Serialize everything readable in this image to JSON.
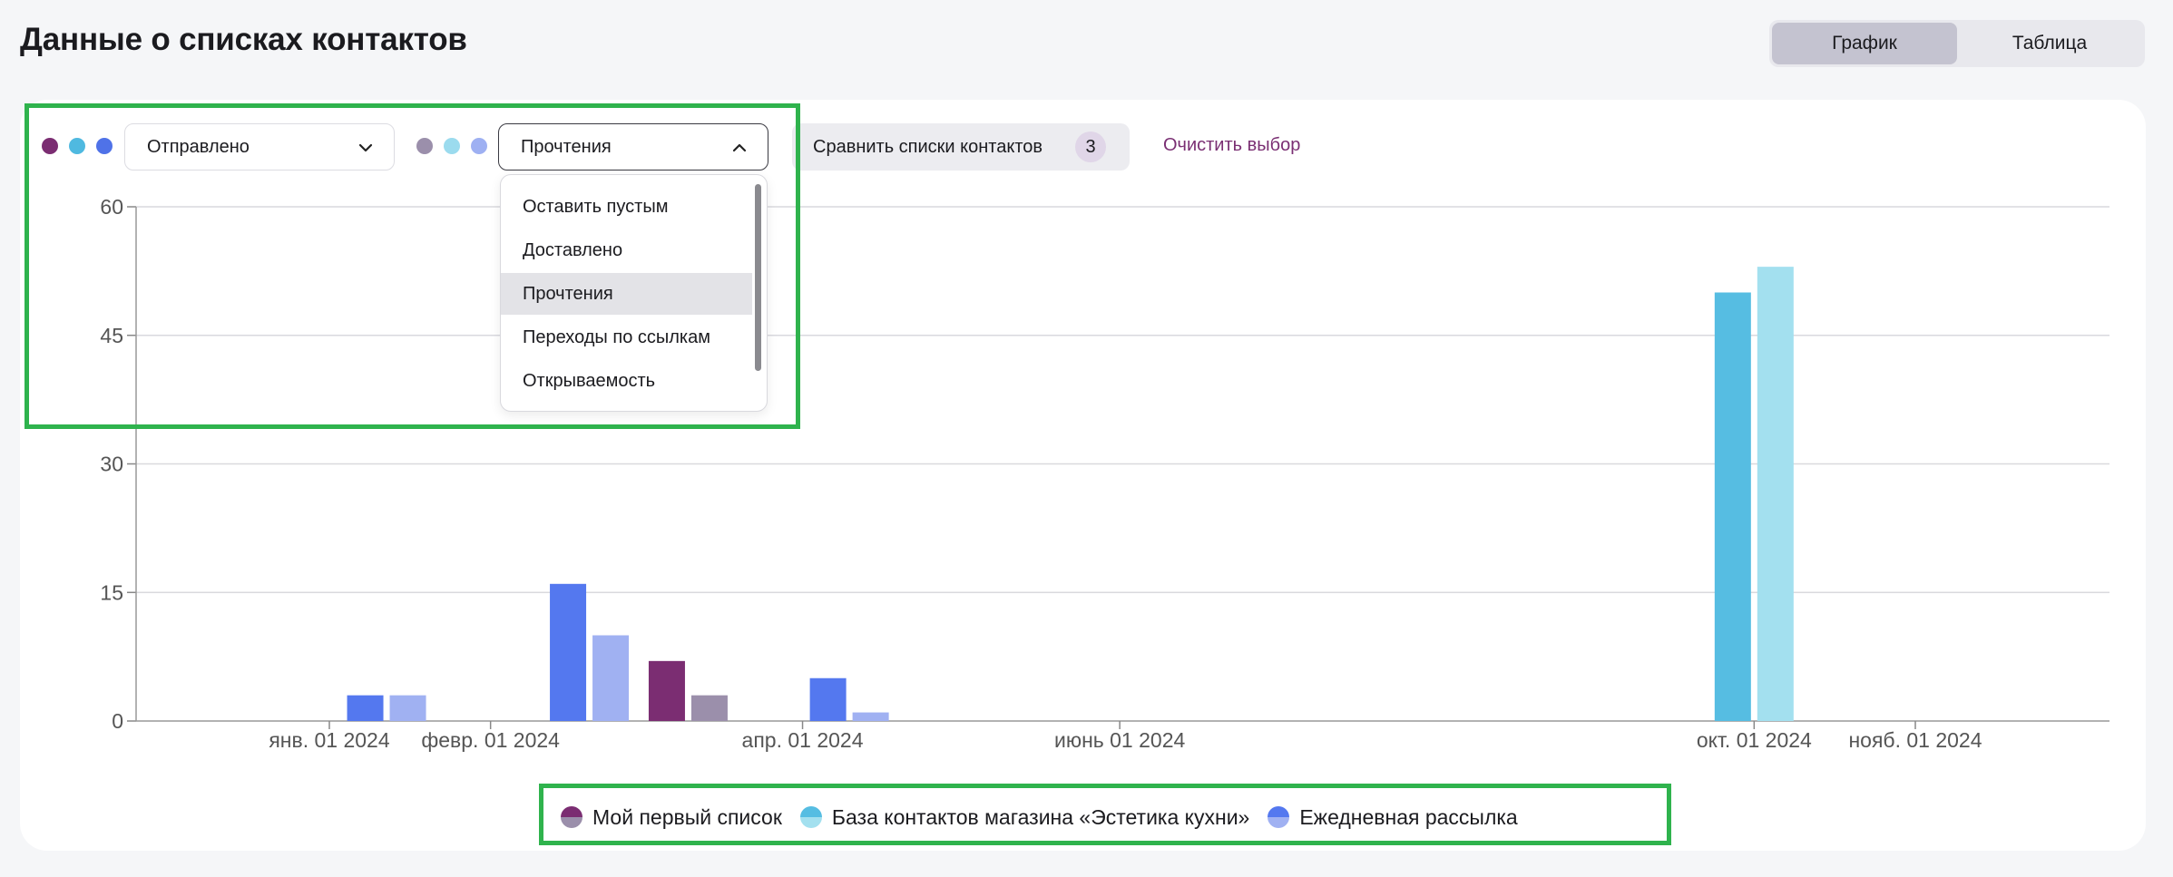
{
  "page": {
    "title": "Данные о списках контактов"
  },
  "view_toggle": {
    "items": [
      "График",
      "Таблица"
    ],
    "active": "График"
  },
  "controls": {
    "primary_metric": {
      "value": "Отправлено",
      "dot_colors": [
        "#7b2d72",
        "#4fb9e0",
        "#4f72e8"
      ]
    },
    "secondary_metric": {
      "value": "Прочтения",
      "dot_colors": [
        "#9b8fab",
        "#9bdbee",
        "#9eb0f2"
      ],
      "open": true,
      "options": [
        "Оставить пустым",
        "Доставлено",
        "Прочтения",
        "Переходы по ссылкам",
        "Открываемость"
      ],
      "selected": "Прочтения"
    },
    "compare_button": {
      "label": "Сравнить списки контактов",
      "count": "3"
    },
    "clear_link": {
      "label": "Очистить выбор"
    }
  },
  "colors": {
    "accent": "#7a2f73",
    "highlight": "#2fb34d"
  },
  "chart_data": {
    "type": "bar",
    "x_ticks": [
      "янв. 01 2024",
      "февр. 01 2024",
      "апр. 01 2024",
      "июнь 01 2024",
      "окт. 01 2024",
      "нояб. 01 2024"
    ],
    "yticks": [
      0,
      15,
      30,
      45,
      60
    ],
    "ylim": [
      0,
      60
    ],
    "legend_position": "bottom-center",
    "grid": true,
    "series": [
      {
        "name": "Мой первый список",
        "color": "#7b2d72",
        "secondary_color": "#9b8fab"
      },
      {
        "name": "База контактов магазина «Эстетика кухни»",
        "color": "#56bde2",
        "secondary_color": "#a3e0ef"
      },
      {
        "name": "Ежедневная рассылка",
        "color": "#5478ef",
        "secondary_color": "#a0b1f2"
      }
    ],
    "bars": [
      {
        "date": "2024-01-12",
        "series": "Ежедневная рассылка",
        "metric": "Отправлено",
        "value": 3
      },
      {
        "date": "2024-01-12",
        "series": "Ежедневная рассылка",
        "metric": "Прочтения",
        "value": 3
      },
      {
        "date": "2024-02-20",
        "series": "Ежедневная рассылка",
        "metric": "Отправлено",
        "value": 16
      },
      {
        "date": "2024-02-20",
        "series": "Ежедневная рассылка",
        "metric": "Прочтения",
        "value": 10
      },
      {
        "date": "2024-03-10",
        "series": "Мой первый список",
        "metric": "Отправлено",
        "value": 7
      },
      {
        "date": "2024-03-10",
        "series": "Мой первый список",
        "metric": "Прочтения",
        "value": 3
      },
      {
        "date": "2024-04-10",
        "series": "Ежедневная рассылка",
        "metric": "Отправлено",
        "value": 5
      },
      {
        "date": "2024-04-10",
        "series": "Ежедневная рассылка",
        "metric": "Прочтения",
        "value": 1
      },
      {
        "date": "2024-10-01",
        "series": "База контактов магазина «Эстетика кухни»",
        "metric": "Отправлено",
        "value": 50
      },
      {
        "date": "2024-10-01",
        "series": "База контактов магазина «Эстетика кухни»",
        "metric": "Прочтения",
        "value": 53
      }
    ]
  }
}
